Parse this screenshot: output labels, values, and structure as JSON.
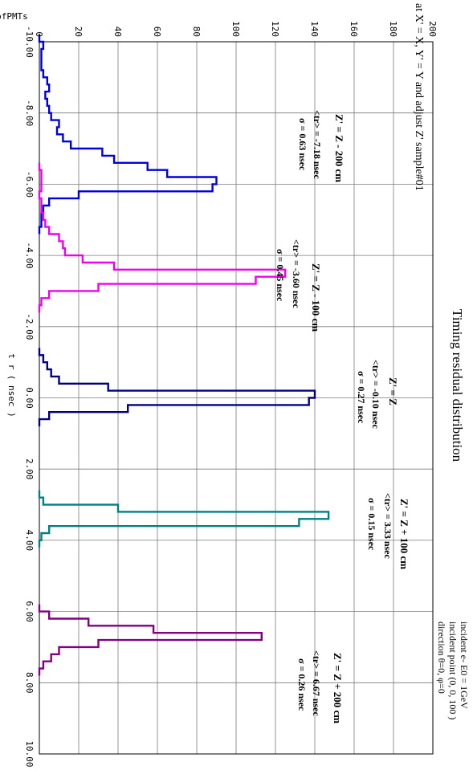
{
  "chart_data": {
    "type": "histogram",
    "title": "Timing residual distribution",
    "subtitle": "at X' = X,  Y' = Y and adjust Z'  sample#01",
    "info": [
      "incident e-  E0 = 1GeV",
      "incident point  (0, 0, 100 )",
      "direction θ=0,  φ=0"
    ],
    "xlabel": "t r ( nsec )",
    "ylabel": "No.ofPMTs",
    "xlim": [
      -10,
      10
    ],
    "ylim": [
      0,
      200
    ],
    "xticks": [
      "-10.00",
      "-8.00",
      "-6.00",
      "-4.00",
      "-2.00",
      "0.00",
      "2.00",
      "4.00",
      "6.00",
      "8.00",
      "10.00"
    ],
    "yticks": [
      "0",
      "20",
      "40",
      "60",
      "80",
      "100",
      "120",
      "140",
      "160",
      "180",
      "200"
    ],
    "grid": true,
    "series": [
      {
        "name": "Z' = Z - 200 cm",
        "color": "#0000dd",
        "bin_width": 0.2,
        "x": [
          -10.2,
          -10.0,
          -9.8,
          -9.6,
          -9.4,
          -9.2,
          -9.0,
          -8.8,
          -8.6,
          -8.4,
          -8.2,
          -8.0,
          -7.8,
          -7.6,
          -7.4,
          -7.2,
          -7.0,
          -6.8,
          -6.6,
          -6.4,
          -6.2,
          -6.0,
          -5.8,
          -5.6,
          -5.4,
          -5.2,
          -5.0,
          -4.8
        ],
        "y": [
          0,
          2,
          1,
          1,
          1,
          2,
          4,
          5,
          3,
          4,
          5,
          6,
          10,
          9,
          12,
          16,
          32,
          38,
          55,
          65,
          90,
          88,
          20,
          5,
          2,
          1,
          1,
          0
        ]
      },
      {
        "name": "Z' = Z - 100 cm",
        "color": "#ee00ee",
        "bin_width": 0.2,
        "x": [
          -6.6,
          -6.4,
          -6.2,
          -6.0,
          -5.8,
          -5.6,
          -5.4,
          -5.2,
          -5.0,
          -4.8,
          -4.6,
          -4.4,
          -4.2,
          -4.0,
          -3.8,
          -3.6,
          -3.4,
          -3.2,
          -3.0,
          -2.8,
          -2.6
        ],
        "y": [
          0,
          1,
          1,
          1,
          0,
          1,
          1,
          2,
          3,
          5,
          10,
          12,
          13,
          22,
          38,
          125,
          110,
          30,
          5,
          1,
          0
        ]
      },
      {
        "name": "Z' = Z",
        "color": "#000080",
        "bin_width": 0.2,
        "x": [
          -1.4,
          -1.2,
          -1.0,
          -0.8,
          -0.6,
          -0.4,
          -0.2,
          0.0,
          0.2,
          0.4,
          0.6
        ],
        "y": [
          0,
          2,
          4,
          6,
          10,
          35,
          140,
          137,
          45,
          5,
          0
        ]
      },
      {
        "name": "Z' = Z + 100 cm",
        "color": "#008080",
        "bin_width": 0.2,
        "x": [
          2.6,
          2.8,
          3.0,
          3.2,
          3.4,
          3.6,
          3.8,
          4.0
        ],
        "y": [
          0,
          2,
          40,
          147,
          132,
          5,
          1,
          0
        ]
      },
      {
        "name": "Z' = Z + 200 cm",
        "color": "#800080",
        "bin_width": 0.2,
        "x": [
          5.8,
          6.0,
          6.2,
          6.4,
          6.6,
          6.8,
          7.0,
          7.2,
          7.4,
          7.6
        ],
        "y": [
          0,
          5,
          25,
          58,
          113,
          30,
          10,
          6,
          2,
          0
        ]
      }
    ],
    "annotations": [
      {
        "label": "Z' = Z - 200 cm",
        "mean": "<tr> = -7.18 nsec",
        "sigma": "σ =  0.63 nsec"
      },
      {
        "label": "Z' = Z - 100 cm",
        "mean": "<tr> = -3.60 nsec",
        "sigma": "σ =  0.45 nsec"
      },
      {
        "label": "Z' = Z",
        "mean": "<tr> = -0.10 nsec",
        "sigma": "σ =  0.27 nsec"
      },
      {
        "label": "Z' = Z + 100 cm",
        "mean": "<tr> =  3.33 nsec",
        "sigma": "σ =  0.15 nsec"
      },
      {
        "label": "Z' = Z + 200 cm",
        "mean": "<tr> =  6.67 nsec",
        "sigma": "σ =  0.26 nsec"
      }
    ]
  }
}
